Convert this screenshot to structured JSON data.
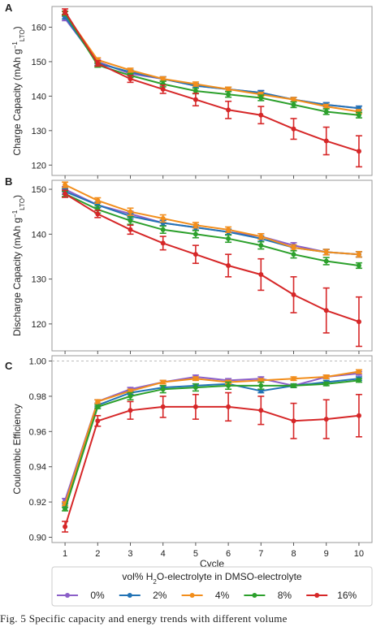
{
  "chart_data": [
    {
      "panel_label": "A",
      "type": "line",
      "ylabel_main": "Charge Capacity (mAh g",
      "ylabel_sup": "−1",
      "ylabel_sub": "LTO",
      "ylabel_close": ")",
      "xlabel": "",
      "x": [
        1,
        2,
        3,
        4,
        5,
        6,
        7,
        8,
        9,
        10
      ],
      "ylim": [
        117,
        166
      ],
      "yticks": [
        120,
        130,
        140,
        150,
        160
      ],
      "series": [
        {
          "name": "0%",
          "color": "#8b5fc8",
          "values": [
            162.5,
            150.0,
            146.5,
            145.0,
            143.0,
            142.0,
            141.0,
            139.0,
            137.5,
            136.5
          ],
          "errors": [
            0.6,
            0.6,
            0.6,
            0.6,
            0.6,
            0.6,
            0.6,
            0.6,
            0.6,
            0.6
          ]
        },
        {
          "name": "2%",
          "color": "#2273b5",
          "values": [
            163.0,
            149.5,
            147.0,
            145.0,
            143.0,
            142.0,
            141.0,
            139.0,
            137.5,
            136.5
          ],
          "errors": [
            0.6,
            0.6,
            0.6,
            0.6,
            0.6,
            0.6,
            0.6,
            0.6,
            0.6,
            0.6
          ]
        },
        {
          "name": "4%",
          "color": "#f28e1c",
          "values": [
            164.0,
            150.5,
            147.5,
            145.0,
            143.5,
            142.0,
            140.5,
            139.0,
            137.0,
            135.5
          ],
          "errors": [
            0.6,
            0.6,
            0.6,
            0.6,
            0.6,
            0.6,
            0.6,
            0.6,
            0.6,
            0.6
          ]
        },
        {
          "name": "8%",
          "color": "#2ca02c",
          "values": [
            164.0,
            149.0,
            146.0,
            143.5,
            141.5,
            140.5,
            139.5,
            137.5,
            135.5,
            134.5
          ],
          "errors": [
            0.6,
            0.6,
            0.6,
            0.8,
            0.8,
            0.8,
            0.8,
            0.8,
            0.8,
            0.8
          ]
        },
        {
          "name": "16%",
          "color": "#d62728",
          "values": [
            164.5,
            149.5,
            145.0,
            142.0,
            139.0,
            136.0,
            134.5,
            130.5,
            127.0,
            124.0
          ],
          "errors": [
            0.8,
            0.8,
            1.0,
            1.2,
            1.8,
            2.5,
            2.5,
            3.0,
            4.0,
            4.5
          ]
        }
      ]
    },
    {
      "panel_label": "B",
      "type": "line",
      "ylabel_main": "Discharge Capacity (mAh g",
      "ylabel_sup": "−1",
      "ylabel_sub": "LTO",
      "ylabel_close": ")",
      "xlabel": "",
      "x": [
        1,
        2,
        3,
        4,
        5,
        6,
        7,
        8,
        9,
        10
      ],
      "ylim": [
        114,
        152
      ],
      "yticks": [
        120,
        130,
        140,
        150
      ],
      "series": [
        {
          "name": "0%",
          "color": "#8b5fc8",
          "values": [
            150.0,
            146.5,
            144.5,
            142.5,
            141.5,
            140.5,
            139.5,
            137.5,
            136.0,
            135.5
          ],
          "errors": [
            0.6,
            0.6,
            0.6,
            0.6,
            0.6,
            0.6,
            0.6,
            0.6,
            0.6,
            0.6
          ]
        },
        {
          "name": "2%",
          "color": "#2273b5",
          "values": [
            149.5,
            146.5,
            144.0,
            142.5,
            141.5,
            140.5,
            139.0,
            137.0,
            136.0,
            135.5
          ],
          "errors": [
            0.6,
            0.6,
            0.6,
            0.6,
            0.6,
            0.6,
            0.6,
            0.6,
            0.6,
            0.6
          ]
        },
        {
          "name": "4%",
          "color": "#f28e1c",
          "values": [
            151.0,
            147.5,
            145.0,
            143.5,
            142.0,
            141.0,
            139.5,
            137.0,
            136.0,
            135.5
          ],
          "errors": [
            0.6,
            0.6,
            0.8,
            0.8,
            0.6,
            0.6,
            0.6,
            0.6,
            0.6,
            0.6
          ]
        },
        {
          "name": "8%",
          "color": "#2ca02c",
          "values": [
            149.0,
            145.5,
            143.0,
            141.0,
            140.0,
            139.0,
            137.5,
            135.5,
            134.0,
            133.0
          ],
          "errors": [
            0.6,
            0.8,
            0.8,
            0.8,
            0.8,
            0.8,
            0.8,
            0.8,
            0.8,
            0.6
          ]
        },
        {
          "name": "16%",
          "color": "#d62728",
          "values": [
            149.0,
            144.5,
            141.0,
            138.0,
            135.5,
            133.0,
            131.0,
            126.5,
            123.0,
            120.5
          ],
          "errors": [
            0.8,
            0.8,
            1.0,
            1.5,
            2.0,
            2.5,
            3.5,
            4.0,
            5.0,
            5.5
          ]
        }
      ]
    },
    {
      "panel_label": "C",
      "type": "line",
      "ylabel_main": "Coulombic Efficiency",
      "xlabel": "Cycle",
      "x": [
        1,
        2,
        3,
        4,
        5,
        6,
        7,
        8,
        9,
        10
      ],
      "xticks": [
        1,
        2,
        3,
        4,
        5,
        6,
        7,
        8,
        9,
        10
      ],
      "ylim": [
        0.897,
        1.003
      ],
      "yticks": [
        0.9,
        0.92,
        0.94,
        0.96,
        0.98,
        1.0
      ],
      "ytick_labels": [
        "0.90",
        "0.92",
        "0.94",
        "0.96",
        "0.98",
        "1.00"
      ],
      "reference_line": 1.0,
      "series": [
        {
          "name": "0%",
          "color": "#8b5fc8",
          "values": [
            0.921,
            0.977,
            0.984,
            0.988,
            0.991,
            0.989,
            0.99,
            0.986,
            0.991,
            0.993
          ],
          "errors": [
            0.001,
            0.001,
            0.001,
            0.001,
            0.001,
            0.001,
            0.001,
            0.001,
            0.001,
            0.001
          ]
        },
        {
          "name": "2%",
          "color": "#2273b5",
          "values": [
            0.918,
            0.975,
            0.982,
            0.985,
            0.986,
            0.987,
            0.983,
            0.986,
            0.988,
            0.99
          ],
          "errors": [
            0.001,
            0.001,
            0.001,
            0.001,
            0.001,
            0.001,
            0.001,
            0.001,
            0.001,
            0.001
          ]
        },
        {
          "name": "4%",
          "color": "#f28e1c",
          "values": [
            0.919,
            0.977,
            0.983,
            0.988,
            0.99,
            0.988,
            0.989,
            0.99,
            0.991,
            0.994
          ],
          "errors": [
            0.001,
            0.001,
            0.001,
            0.001,
            0.001,
            0.001,
            0.001,
            0.001,
            0.001,
            0.001
          ]
        },
        {
          "name": "8%",
          "color": "#2ca02c",
          "values": [
            0.916,
            0.974,
            0.98,
            0.984,
            0.985,
            0.986,
            0.986,
            0.986,
            0.987,
            0.989
          ],
          "errors": [
            0.001,
            0.001,
            0.002,
            0.002,
            0.002,
            0.002,
            0.002,
            0.001,
            0.001,
            0.001
          ]
        },
        {
          "name": "16%",
          "color": "#d62728",
          "values": [
            0.906,
            0.966,
            0.972,
            0.974,
            0.974,
            0.974,
            0.972,
            0.966,
            0.967,
            0.969
          ],
          "errors": [
            0.003,
            0.003,
            0.005,
            0.006,
            0.007,
            0.008,
            0.008,
            0.01,
            0.011,
            0.012
          ]
        }
      ]
    }
  ],
  "legend": {
    "title_pre": "vol% H",
    "title_sub": "2",
    "title_post": "O-electrolyte in DMSO-electrolyte",
    "placement": "bottom-center"
  },
  "caption": "Fig. 5  Specific capacity and energy trends with different volume"
}
